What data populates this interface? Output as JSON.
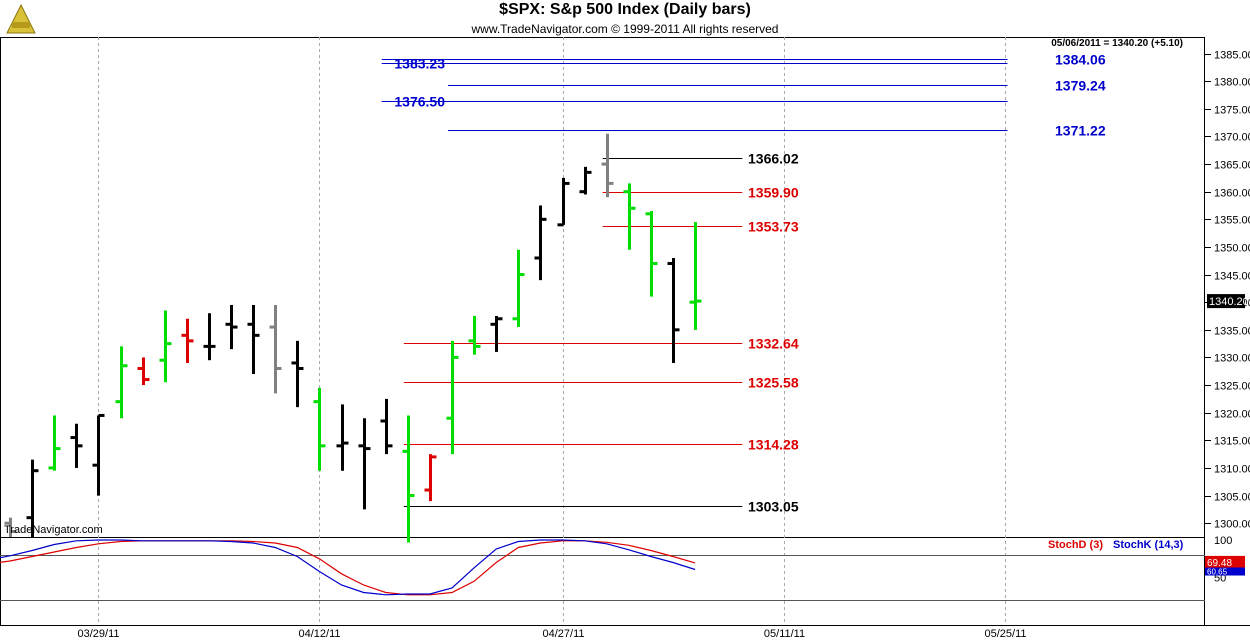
{
  "header": {
    "title": "$SPX:  S&p 500 Index  (Daily bars)",
    "subtitle": "www.TradeNavigator.com © 1999-2011 All rights reserved",
    "last_info": "05/06/2011 = 1340.20 (+5.10)",
    "watermark": "TradeNavigator.com"
  },
  "colors": {
    "up": "#00dd00",
    "down": "#dd0000",
    "neutral": "#000000",
    "gray": "#808080",
    "blue_level": "#0000cc",
    "red_level": "#dd0000",
    "black_level": "#000000",
    "stochD": "#dd0000",
    "stochK": "#0000cc"
  },
  "chart_data": {
    "type": "ohlc-bar",
    "price_axis": {
      "min": 1297.5,
      "max": 1388,
      "ticks": [
        "1300.00",
        "1305.00",
        "1310.00",
        "1315.00",
        "1320.00",
        "1325.00",
        "1330.00",
        "1335.00",
        "1340.00",
        "1345.00",
        "1350.00",
        "1355.00",
        "1360.00",
        "1365.00",
        "1370.00",
        "1375.00",
        "1380.00",
        "1385.00"
      ],
      "last_price_label": "1340.20"
    },
    "date_labels": [
      {
        "label": "03/29/11",
        "bar": 4
      },
      {
        "label": "04/12/11",
        "bar": 14
      },
      {
        "label": "04/27/11",
        "bar": 25
      },
      {
        "label": "05/11/11",
        "bar": 35
      },
      {
        "label": "05/25/11",
        "bar": 45
      }
    ],
    "bars": [
      {
        "o": 1300.0,
        "h": 1301.0,
        "l": 1297.5,
        "c": 1298.5,
        "color": "gray"
      },
      {
        "o": 1301.0,
        "h": 1311.5,
        "l": 1297.5,
        "c": 1309.5,
        "color": "neutral"
      },
      {
        "o": 1310.0,
        "h": 1319.5,
        "l": 1309.5,
        "c": 1313.5,
        "color": "up"
      },
      {
        "o": 1315.5,
        "h": 1318.0,
        "l": 1310.0,
        "c": 1314.0,
        "color": "neutral"
      },
      {
        "o": 1310.5,
        "h": 1319.5,
        "l": 1305.0,
        "c": 1319.5,
        "color": "neutral"
      },
      {
        "o": 1322.0,
        "h": 1332.0,
        "l": 1319.0,
        "c": 1328.5,
        "color": "up"
      },
      {
        "o": 1328.0,
        "h": 1330.0,
        "l": 1325.0,
        "c": 1326.0,
        "color": "down"
      },
      {
        "o": 1329.5,
        "h": 1338.5,
        "l": 1325.5,
        "c": 1332.5,
        "color": "up"
      },
      {
        "o": 1334.0,
        "h": 1337.0,
        "l": 1329.0,
        "c": 1333.0,
        "color": "down"
      },
      {
        "o": 1332.0,
        "h": 1338.0,
        "l": 1329.5,
        "c": 1332.0,
        "color": "neutral"
      },
      {
        "o": 1336.0,
        "h": 1339.5,
        "l": 1331.5,
        "c": 1335.5,
        "color": "neutral"
      },
      {
        "o": 1336.0,
        "h": 1339.5,
        "l": 1327.0,
        "c": 1334.0,
        "color": "neutral"
      },
      {
        "o": 1335.5,
        "h": 1339.5,
        "l": 1323.5,
        "c": 1328.0,
        "color": "gray"
      },
      {
        "o": 1329.0,
        "h": 1333.0,
        "l": 1321.0,
        "c": 1328.0,
        "color": "neutral"
      },
      {
        "o": 1322.0,
        "h": 1324.5,
        "l": 1309.5,
        "c": 1314.0,
        "color": "up"
      },
      {
        "o": 1314.0,
        "h": 1321.5,
        "l": 1309.5,
        "c": 1314.5,
        "color": "neutral"
      },
      {
        "o": 1314.0,
        "h": 1319.0,
        "l": 1302.5,
        "c": 1313.5,
        "color": "neutral"
      },
      {
        "o": 1318.5,
        "h": 1322.5,
        "l": 1312.5,
        "c": 1314.0,
        "color": "neutral"
      },
      {
        "o": 1313.0,
        "h": 1319.5,
        "l": 1296.5,
        "c": 1305.0,
        "color": "up"
      },
      {
        "o": 1306.0,
        "h": 1312.5,
        "l": 1304.0,
        "c": 1312.0,
        "color": "down"
      },
      {
        "o": 1319.0,
        "h": 1333.0,
        "l": 1312.5,
        "c": 1330.0,
        "color": "up"
      },
      {
        "o": 1333.0,
        "h": 1337.5,
        "l": 1330.5,
        "c": 1332.0,
        "color": "up"
      },
      {
        "o": 1336.0,
        "h": 1337.5,
        "l": 1331.0,
        "c": 1337.0,
        "color": "neutral"
      },
      {
        "o": 1337.0,
        "h": 1349.5,
        "l": 1335.5,
        "c": 1345.0,
        "color": "up"
      },
      {
        "o": 1348.0,
        "h": 1357.5,
        "l": 1344.0,
        "c": 1355.0,
        "color": "neutral"
      },
      {
        "o": 1354.0,
        "h": 1362.5,
        "l": 1354.0,
        "c": 1361.5,
        "color": "neutral"
      },
      {
        "o": 1360.0,
        "h": 1364.5,
        "l": 1359.5,
        "c": 1363.5,
        "color": "neutral"
      },
      {
        "o": 1365.0,
        "h": 1370.5,
        "l": 1359.0,
        "c": 1361.5,
        "color": "gray"
      },
      {
        "o": 1360.0,
        "h": 1361.5,
        "l": 1349.5,
        "c": 1357.0,
        "color": "up"
      },
      {
        "o": 1356.0,
        "h": 1356.5,
        "l": 1341.0,
        "c": 1347.0,
        "color": "up"
      },
      {
        "o": 1347.0,
        "h": 1348.0,
        "l": 1329.0,
        "c": 1335.0,
        "color": "neutral"
      },
      {
        "o": 1340.0,
        "h": 1354.5,
        "l": 1335.0,
        "c": 1340.2,
        "color": "up"
      }
    ],
    "levels": [
      {
        "label": "1383.23",
        "value": 1383.23,
        "color": "blue",
        "label_side": "left",
        "x_from_bar": 17,
        "x_to_bar": 45
      },
      {
        "label": "1384.06",
        "value": 1384.06,
        "color": "blue",
        "label_side": "right",
        "x_from_bar": 17,
        "x_to_bar": 45
      },
      {
        "label": "1379.24",
        "value": 1379.24,
        "color": "blue",
        "label_side": "right",
        "x_from_bar": 20,
        "x_to_bar": 45
      },
      {
        "label": "1376.50",
        "value": 1376.5,
        "color": "blue",
        "label_side": "left",
        "x_from_bar": 17,
        "x_to_bar": 45
      },
      {
        "label": "1371.22",
        "value": 1371.22,
        "color": "blue",
        "label_side": "right",
        "x_from_bar": 20,
        "x_to_bar": 45
      },
      {
        "label": "1366.02",
        "value": 1366.02,
        "color": "black",
        "label_side": "right",
        "x_from_bar": 27,
        "x_to_bar": 33
      },
      {
        "label": "1359.90",
        "value": 1359.9,
        "color": "red",
        "label_side": "right",
        "x_from_bar": 27,
        "x_to_bar": 33
      },
      {
        "label": "1353.73",
        "value": 1353.73,
        "color": "red",
        "label_side": "right",
        "x_from_bar": 27,
        "x_to_bar": 33
      },
      {
        "label": "1332.64",
        "value": 1332.64,
        "color": "red",
        "label_side": "right",
        "x_from_bar": 18,
        "x_to_bar": 33
      },
      {
        "label": "1325.58",
        "value": 1325.58,
        "color": "red",
        "label_side": "right",
        "x_from_bar": 18,
        "x_to_bar": 33
      },
      {
        "label": "1314.28",
        "value": 1314.28,
        "color": "red",
        "label_side": "right",
        "x_from_bar": 18,
        "x_to_bar": 33
      },
      {
        "label": "1303.05",
        "value": 1303.05,
        "color": "black",
        "label_side": "right",
        "x_from_bar": 18,
        "x_to_bar": 33
      }
    ],
    "stochastic": {
      "d_label": "StochD (3)",
      "k_label": "StochK (14,3)",
      "ticks": [
        "100",
        "50"
      ],
      "ref_lines": [
        80,
        20
      ],
      "last_d": "69.48",
      "last_k": "60.65",
      "x_bars": [
        -0.5,
        0,
        1,
        2,
        3,
        4,
        5,
        6,
        7,
        8,
        9,
        10,
        11,
        12,
        13,
        14,
        15,
        16,
        17,
        18,
        19,
        20,
        21,
        22,
        23,
        24,
        25,
        26,
        27,
        28,
        29,
        30,
        31
      ],
      "d": [
        70,
        72,
        78,
        84,
        90,
        95,
        98,
        99,
        99,
        99,
        99,
        99,
        98,
        96,
        90,
        75,
        55,
        40,
        30,
        27,
        27,
        30,
        45,
        70,
        90,
        96,
        99,
        99,
        97,
        93,
        86,
        78,
        69.48
      ],
      "k": [
        76,
        79,
        86,
        94,
        99,
        100,
        100,
        99,
        99,
        99,
        99,
        98,
        96,
        90,
        78,
        58,
        40,
        30,
        27,
        28,
        28,
        36,
        63,
        88,
        98,
        100,
        100,
        99,
        95,
        87,
        78,
        70,
        60.65
      ]
    }
  }
}
